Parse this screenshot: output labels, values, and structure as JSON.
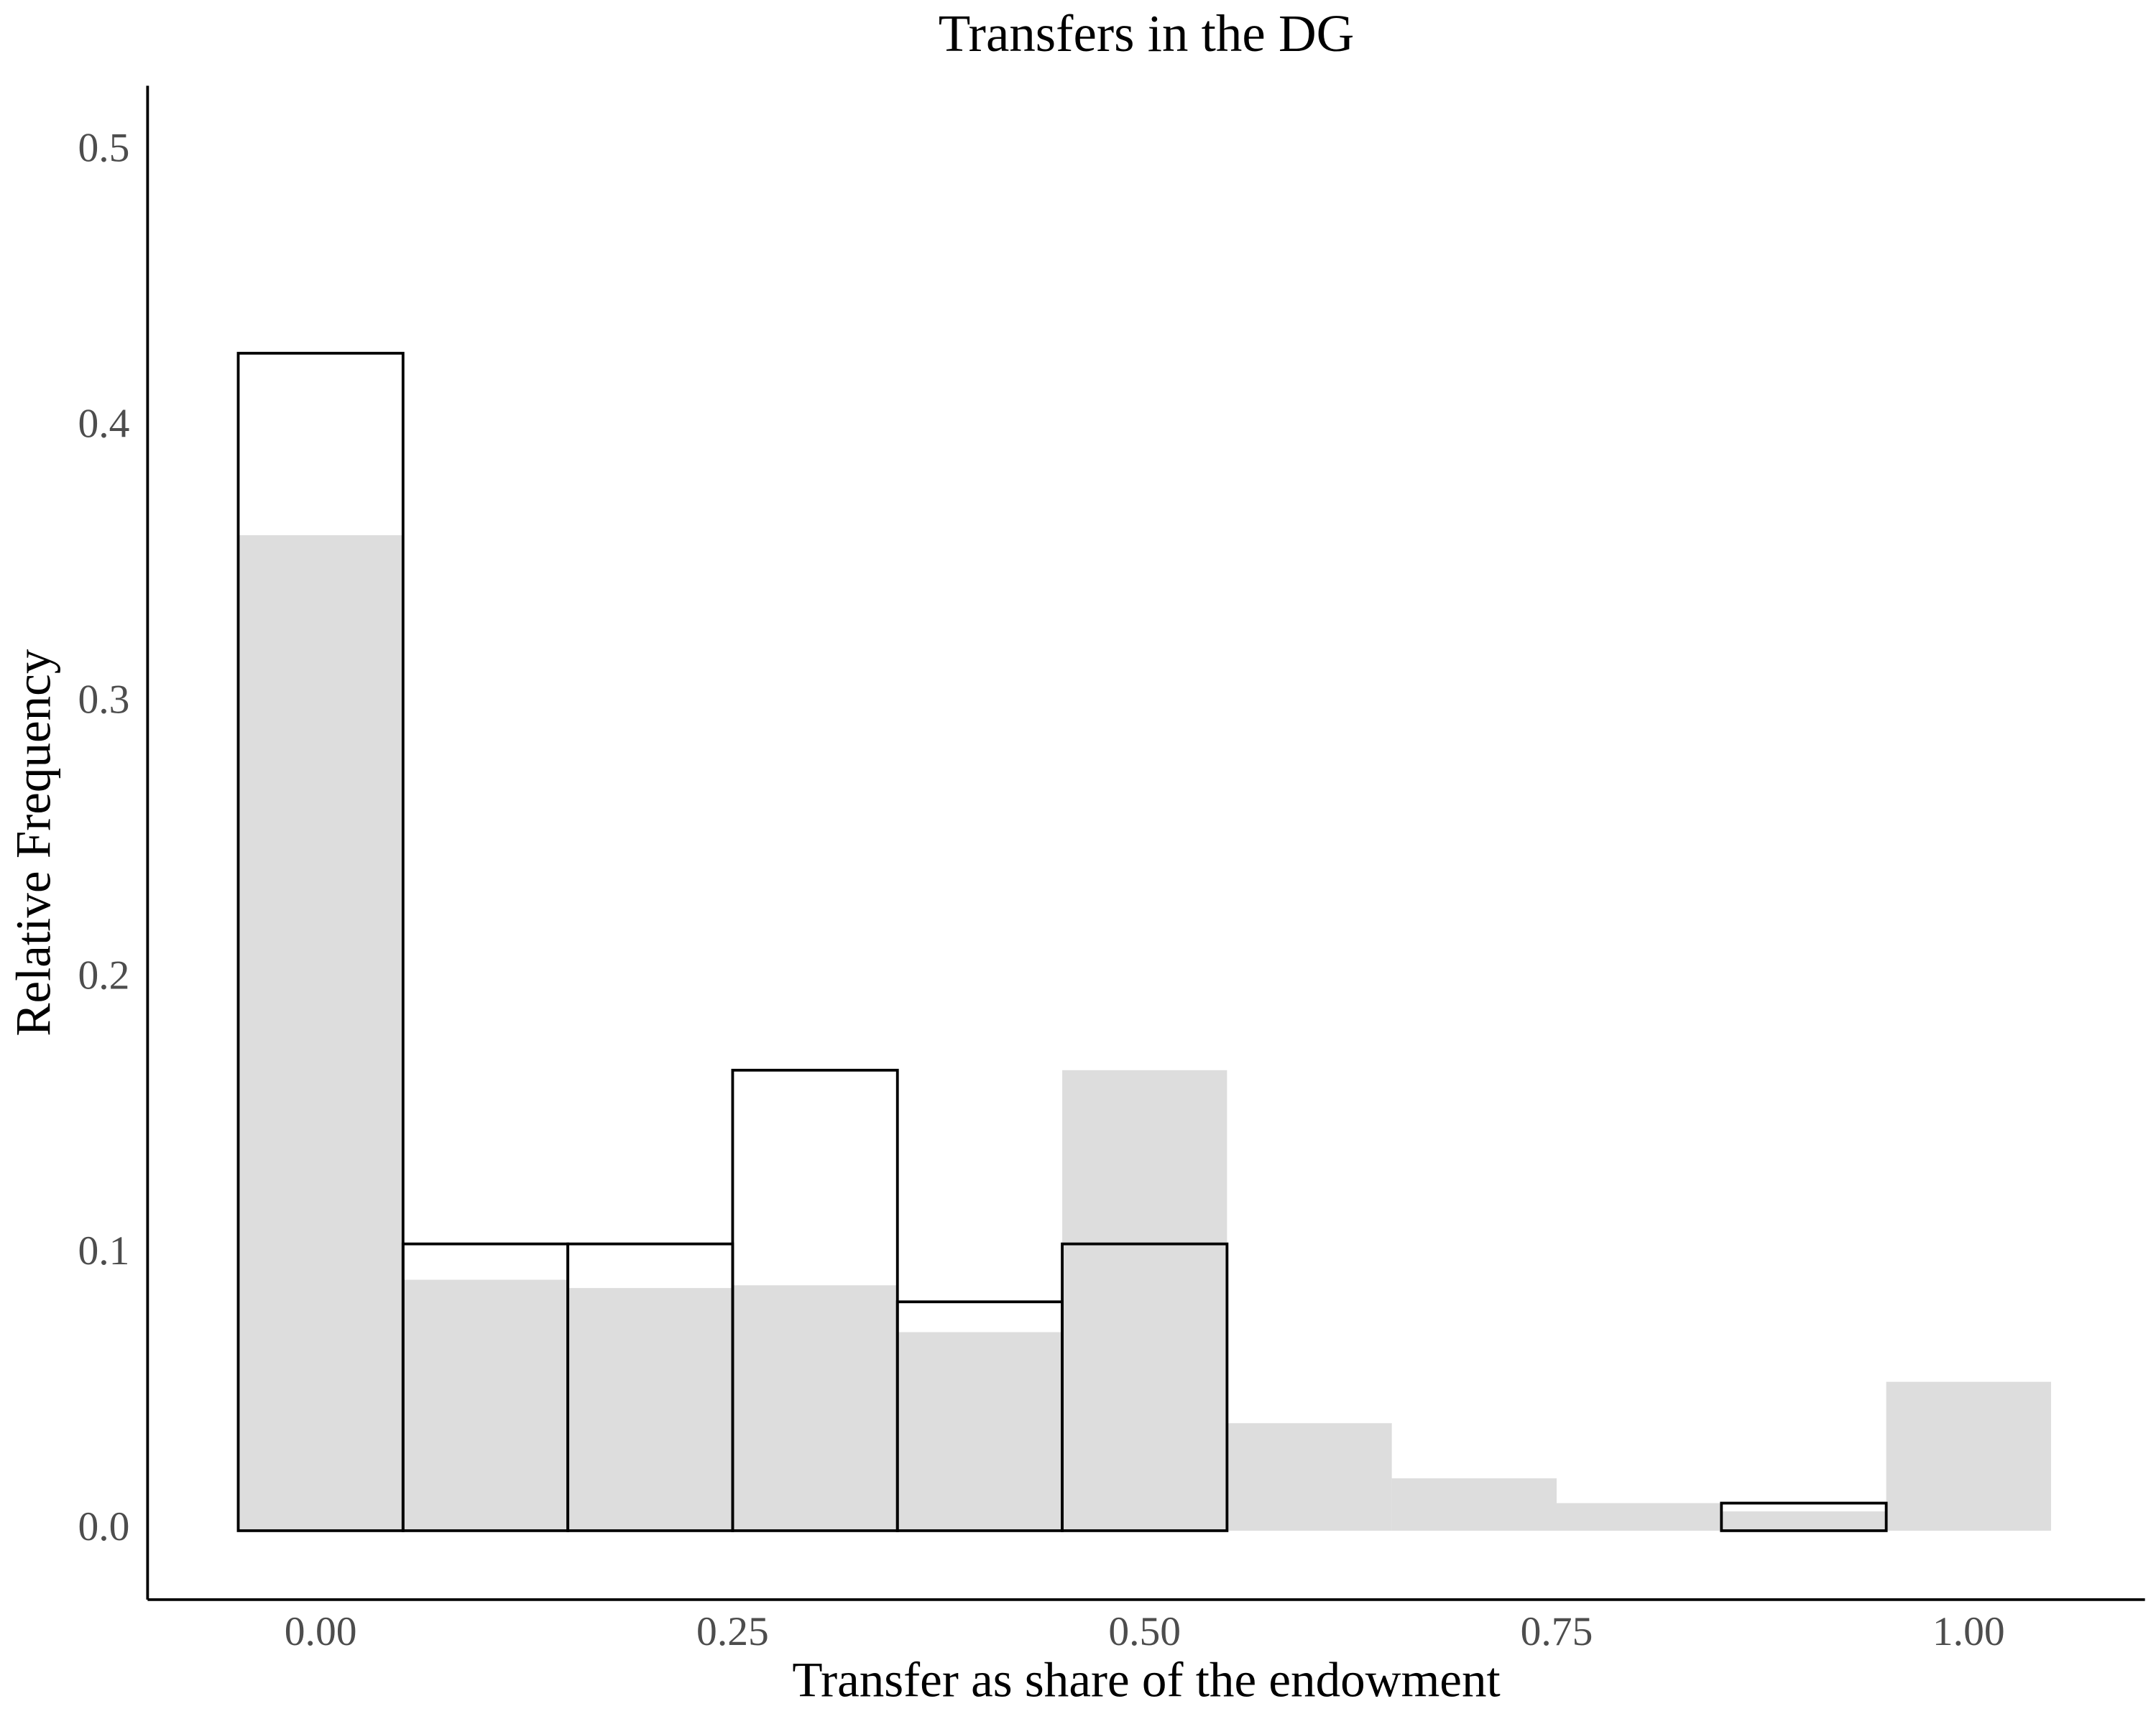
{
  "chart_data": {
    "type": "histogram",
    "title": "Transfers in the DG",
    "xlabel": "Transfer as share of the endowment",
    "ylabel": "Relative Frequency",
    "bins": [
      -0.05,
      0.05,
      0.15,
      0.25,
      0.35,
      0.45,
      0.55,
      0.65,
      0.75,
      0.85,
      0.95,
      1.05
    ],
    "series": [
      {
        "color": "#dddddd",
        "fill": true,
        "values": [
          0.361,
          0.091,
          0.088,
          0.089,
          0.072,
          0.167,
          0.039,
          0.019,
          0.01,
          0.007,
          0.054
        ]
      },
      {
        "color": "#000000",
        "fill": false,
        "values": [
          0.427,
          0.104,
          0.104,
          0.167,
          0.083,
          0.104,
          0,
          0,
          0,
          0.01,
          0
        ]
      }
    ],
    "xlim": [
      -0.105,
      1.107
    ],
    "ylim": [
      -0.025,
      0.524
    ],
    "xticks": [
      {
        "value": 0,
        "label": "0.00"
      },
      {
        "value": 0.25,
        "label": "0.25"
      },
      {
        "value": 0.5,
        "label": "0.50"
      },
      {
        "value": 0.75,
        "label": "0.75"
      },
      {
        "value": 1,
        "label": "1.00"
      }
    ],
    "yticks": [
      {
        "value": 0,
        "label": "0.0"
      },
      0.1,
      0.2,
      0.3,
      0.4,
      0.5
    ],
    "grid": false
  }
}
